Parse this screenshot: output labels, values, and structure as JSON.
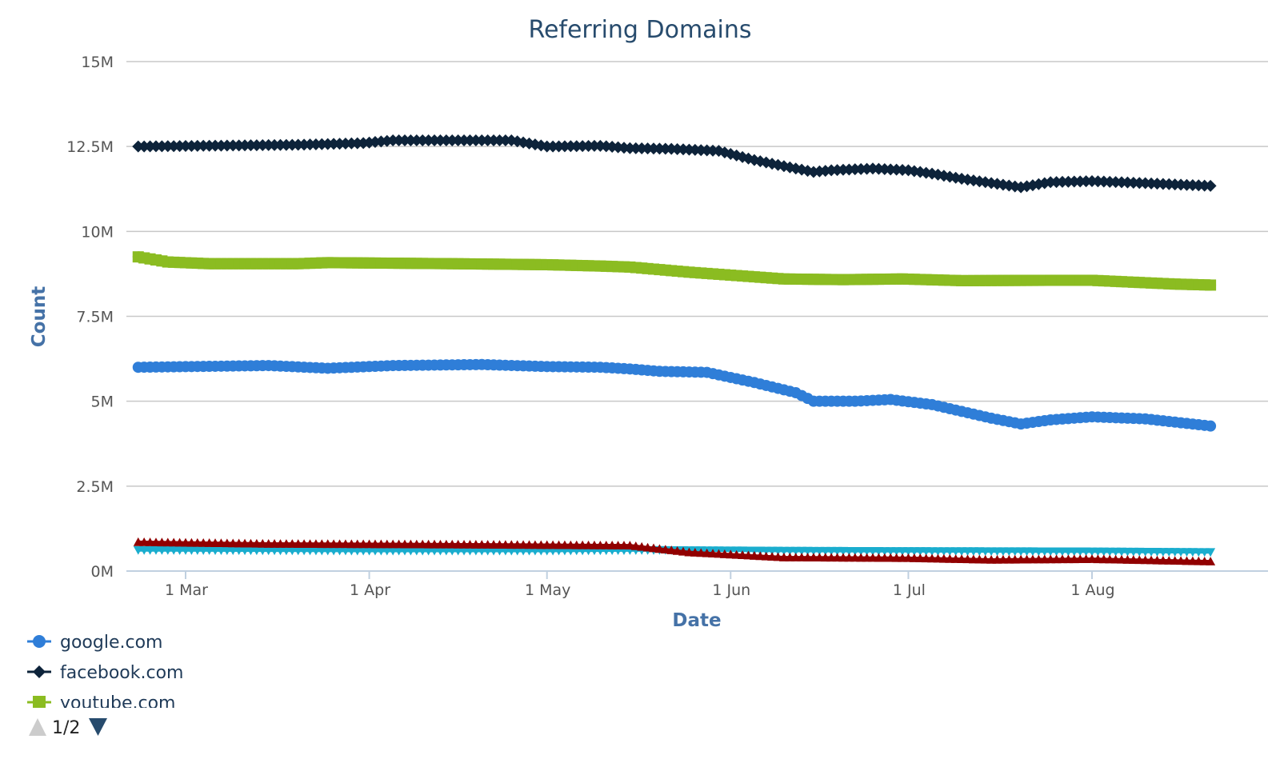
{
  "chart_data": {
    "type": "line",
    "title": "Referring Domains",
    "xlabel": "Date",
    "ylabel": "Count",
    "x_range": [
      "2014-02-21",
      "2014-08-21"
    ],
    "ylim": [
      0,
      15000000
    ],
    "y_ticks": [
      {
        "value": 0,
        "label": "0M"
      },
      {
        "value": 2500000,
        "label": "2.5M"
      },
      {
        "value": 5000000,
        "label": "5M"
      },
      {
        "value": 7500000,
        "label": "7.5M"
      },
      {
        "value": 10000000,
        "label": "10M"
      },
      {
        "value": 12500000,
        "label": "12.5M"
      },
      {
        "value": 15000000,
        "label": "15M"
      }
    ],
    "x_ticks": [
      {
        "date": "2014-03-01",
        "label": "1 Mar"
      },
      {
        "date": "2014-04-01",
        "label": "1 Apr"
      },
      {
        "date": "2014-05-01",
        "label": "1 May"
      },
      {
        "date": "2014-06-01",
        "label": "1 Jun"
      },
      {
        "date": "2014-07-01",
        "label": "1 Jul"
      },
      {
        "date": "2014-08-01",
        "label": "1 Aug"
      }
    ],
    "grid": true,
    "legend_placement": "bottom-left",
    "series": [
      {
        "name": "google.com",
        "color": "#2f7ed8",
        "marker": "circle",
        "points": [
          [
            "2014-02-21",
            6000000
          ],
          [
            "2014-03-15",
            6050000
          ],
          [
            "2014-03-25",
            5970000
          ],
          [
            "2014-04-05",
            6050000
          ],
          [
            "2014-04-20",
            6080000
          ],
          [
            "2014-05-01",
            6020000
          ],
          [
            "2014-05-10",
            6000000
          ],
          [
            "2014-05-15",
            5950000
          ],
          [
            "2014-05-20",
            5880000
          ],
          [
            "2014-05-28",
            5850000
          ],
          [
            "2014-06-05",
            5550000
          ],
          [
            "2014-06-12",
            5250000
          ],
          [
            "2014-06-15",
            5000000
          ],
          [
            "2014-06-22",
            5000000
          ],
          [
            "2014-06-28",
            5050000
          ],
          [
            "2014-07-05",
            4900000
          ],
          [
            "2014-07-10",
            4700000
          ],
          [
            "2014-07-15",
            4500000
          ],
          [
            "2014-07-20",
            4330000
          ],
          [
            "2014-07-25",
            4450000
          ],
          [
            "2014-08-01",
            4540000
          ],
          [
            "2014-08-10",
            4480000
          ],
          [
            "2014-08-21",
            4270000
          ]
        ]
      },
      {
        "name": "facebook.com",
        "color": "#0d233a",
        "marker": "diamond",
        "points": [
          [
            "2014-02-21",
            12500000
          ],
          [
            "2014-03-20",
            12550000
          ],
          [
            "2014-03-31",
            12600000
          ],
          [
            "2014-04-05",
            12680000
          ],
          [
            "2014-04-25",
            12680000
          ],
          [
            "2014-05-01",
            12500000
          ],
          [
            "2014-05-10",
            12520000
          ],
          [
            "2014-05-15",
            12450000
          ],
          [
            "2014-05-22",
            12430000
          ],
          [
            "2014-05-30",
            12370000
          ],
          [
            "2014-06-05",
            12100000
          ],
          [
            "2014-06-12",
            11850000
          ],
          [
            "2014-06-15",
            11750000
          ],
          [
            "2014-06-18",
            11800000
          ],
          [
            "2014-06-25",
            11850000
          ],
          [
            "2014-07-01",
            11800000
          ],
          [
            "2014-07-05",
            11700000
          ],
          [
            "2014-07-10",
            11550000
          ],
          [
            "2014-07-20",
            11300000
          ],
          [
            "2014-07-25",
            11450000
          ],
          [
            "2014-08-01",
            11480000
          ],
          [
            "2014-08-10",
            11420000
          ],
          [
            "2014-08-21",
            11340000
          ]
        ]
      },
      {
        "name": "youtube.com",
        "color": "#8bbc21",
        "marker": "square",
        "points": [
          [
            "2014-02-21",
            9250000
          ],
          [
            "2014-02-26",
            9100000
          ],
          [
            "2014-03-05",
            9050000
          ],
          [
            "2014-03-20",
            9050000
          ],
          [
            "2014-03-25",
            9080000
          ],
          [
            "2014-04-15",
            9050000
          ],
          [
            "2014-05-01",
            9020000
          ],
          [
            "2014-05-10",
            8980000
          ],
          [
            "2014-05-15",
            8950000
          ],
          [
            "2014-05-25",
            8800000
          ],
          [
            "2014-06-10",
            8600000
          ],
          [
            "2014-06-20",
            8580000
          ],
          [
            "2014-06-30",
            8600000
          ],
          [
            "2014-07-10",
            8550000
          ],
          [
            "2014-07-25",
            8560000
          ],
          [
            "2014-08-01",
            8560000
          ],
          [
            "2014-08-15",
            8450000
          ],
          [
            "2014-08-21",
            8420000
          ]
        ]
      },
      {
        "name": "",
        "color": "#910000",
        "marker": "triangle",
        "points": [
          [
            "2014-02-21",
            850000
          ],
          [
            "2014-03-15",
            800000
          ],
          [
            "2014-04-15",
            780000
          ],
          [
            "2014-05-15",
            750000
          ],
          [
            "2014-05-25",
            550000
          ],
          [
            "2014-06-10",
            400000
          ],
          [
            "2014-07-01",
            380000
          ],
          [
            "2014-07-15",
            330000
          ],
          [
            "2014-08-01",
            350000
          ],
          [
            "2014-08-21",
            280000
          ]
        ]
      },
      {
        "name": "",
        "color": "#1aadce",
        "marker": "triangle-down",
        "points": [
          [
            "2014-02-21",
            620000
          ],
          [
            "2014-04-01",
            600000
          ],
          [
            "2014-05-01",
            600000
          ],
          [
            "2014-05-20",
            620000
          ],
          [
            "2014-06-10",
            600000
          ],
          [
            "2014-07-01",
            590000
          ],
          [
            "2014-08-01",
            580000
          ],
          [
            "2014-08-21",
            560000
          ]
        ]
      }
    ]
  },
  "legend": {
    "items": [
      {
        "label": "google.com",
        "color": "#2f7ed8",
        "marker": "circle"
      },
      {
        "label": "facebook.com",
        "color": "#0d233a",
        "marker": "diamond"
      },
      {
        "label": "youtube.com",
        "color": "#8bbc21",
        "marker": "square"
      }
    ],
    "pager": {
      "text": "1/2",
      "up_icon": "arrow-up-icon",
      "down_icon": "arrow-down-icon"
    }
  }
}
